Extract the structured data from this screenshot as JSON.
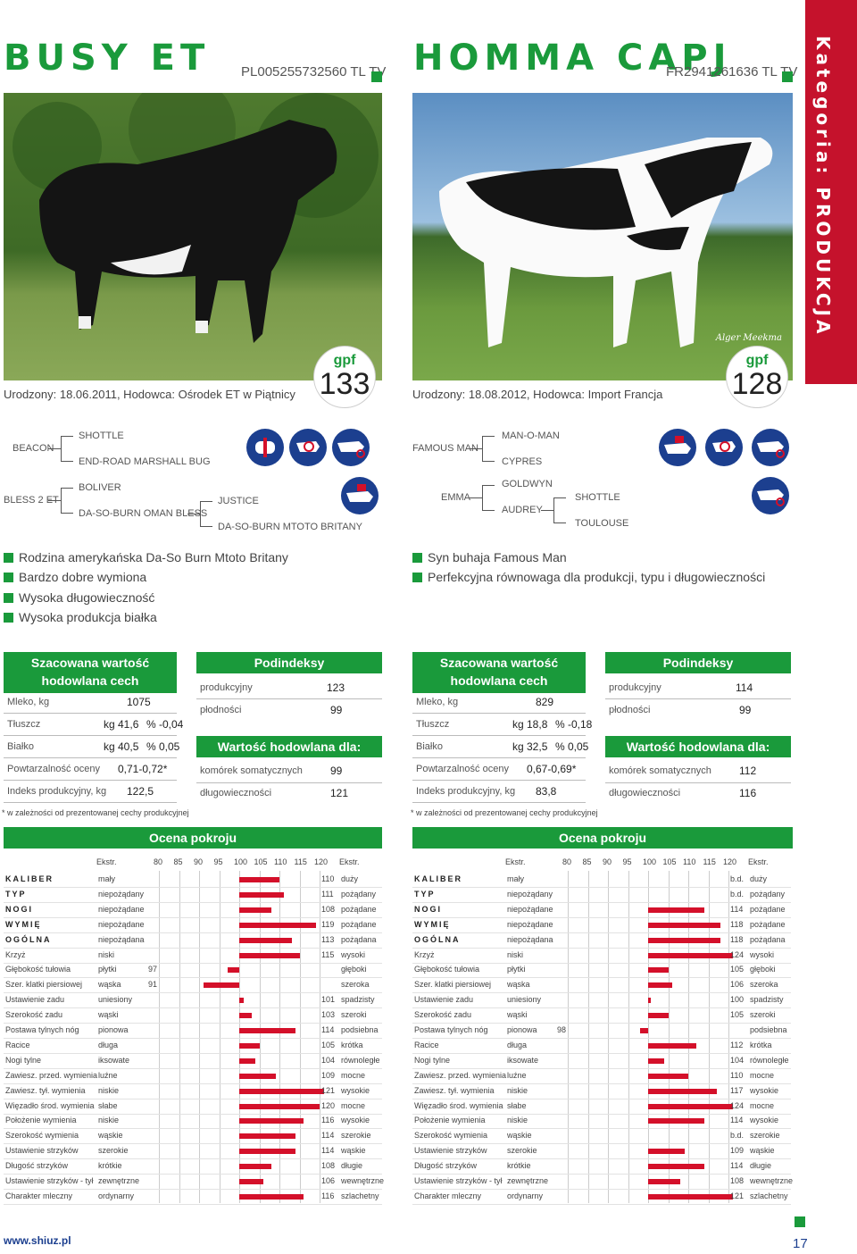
{
  "page": {
    "category": "Kategoria: PRODUKCJA",
    "url": "www.shiuz.pl",
    "page_number": "17"
  },
  "bulls": [
    {
      "name": "BUSY ET",
      "code": "PL005255732560 TL TV",
      "birth": "Urodzony: 18.06.2011, Hodowca: Ośrodek ET w Piątnicy",
      "gpf_label": "gpf",
      "gpf": "133",
      "pedigree": {
        "sire": "BEACON",
        "ss": "SHOTTLE",
        "sd": "END-ROAD MARSHALL BUG",
        "dam": "BLESS 2 ET",
        "ds": "BOLIVER",
        "dd": "DA-SO-BURN OMAN BLESS",
        "dds": "JUSTICE",
        "ddd": "DA-SO-BURN MTOTO BRITANY"
      },
      "icons": [
        "udder-icon",
        "target-icon",
        "cow-icon",
        "milk-icon"
      ],
      "bullets": [
        "Rodzina amerykańska Da-So Burn Mtoto Britany",
        "Bardzo dobre wymiona",
        "Wysoka długowieczność",
        "Wysoka produkcja białka"
      ],
      "est_title": "Szacowana wartość hodowlana cech produkcyjnych",
      "milk_label": "Mleko, kg",
      "milk": "1075",
      "fat_label": "Tłuszcz",
      "fat_kg": "kg 41,6",
      "fat_pct": "% -0,04",
      "prot_label": "Białko",
      "prot_kg": "kg 40,5",
      "prot_pct": "% 0,05",
      "rep_label": "Powtarzalność oceny",
      "rep": "0,71-0,72*",
      "idx_label": "Indeks produkcyjny, kg",
      "idx": "122,5",
      "sub_title": "Podindeksy",
      "prod_label": "produkcyjny",
      "prod": "123",
      "fert_label": "płodności",
      "fert": "99",
      "val_title": "Wartość hodowlana dla:",
      "scc_label": "komórek somatycznych",
      "scc": "99",
      "long_label": "długowieczności",
      "long": "121",
      "note": "* w zależności od prezentowanej cechy produkcyjnej",
      "traits": [
        {
          "name": "KALIBER",
          "lo": "mały",
          "v": "110",
          "val": 110,
          "hi": "duży",
          "bold": true
        },
        {
          "name": "TYP",
          "lo": "niepożądany",
          "v": "111",
          "val": 111,
          "hi": "pożądany",
          "bold": true
        },
        {
          "name": "NOGI",
          "lo": "niepożądane",
          "v": "108",
          "val": 108,
          "hi": "pożądane",
          "bold": true
        },
        {
          "name": "WYMIĘ",
          "lo": "niepożądane",
          "v": "119",
          "val": 119,
          "hi": "pożądane",
          "bold": true
        },
        {
          "name": "OGÓLNA",
          "lo": "niepożądana",
          "v": "113",
          "val": 113,
          "hi": "pożądana",
          "bold": true
        },
        {
          "name": "Krzyż",
          "lo": "niski",
          "v": "115",
          "val": 115,
          "hi": "wysoki"
        },
        {
          "name": "Głębokość tułowia",
          "lo": "płytki",
          "v": "97",
          "val": 97,
          "hi": "głęboki"
        },
        {
          "name": "Szer. klatki piersiowej",
          "lo": "wąska",
          "v": "91",
          "val": 91,
          "hi": "szeroka"
        },
        {
          "name": "Ustawienie zadu",
          "lo": "uniesiony",
          "v": "101",
          "val": 101,
          "hi": "spadzisty"
        },
        {
          "name": "Szerokość zadu",
          "lo": "wąski",
          "v": "103",
          "val": 103,
          "hi": "szeroki"
        },
        {
          "name": "Postawa tylnych nóg",
          "lo": "pionowa",
          "v": "114",
          "val": 114,
          "hi": "podsiebna"
        },
        {
          "name": "Racice",
          "lo": "długa",
          "v": "105",
          "val": 105,
          "hi": "krótka"
        },
        {
          "name": "Nogi tylne",
          "lo": "iksowate",
          "v": "104",
          "val": 104,
          "hi": "równoległe"
        },
        {
          "name": "Zawiesz. przed. wymienia",
          "lo": "luźne",
          "v": "109",
          "val": 109,
          "hi": "mocne"
        },
        {
          "name": "Zawiesz. tył. wymienia",
          "lo": "niskie",
          "v": "121",
          "val": 121,
          "hi": "wysokie"
        },
        {
          "name": "Więzadło środ. wymienia",
          "lo": "słabe",
          "v": "120",
          "val": 120,
          "hi": "mocne"
        },
        {
          "name": "Położenie wymienia",
          "lo": "niskie",
          "v": "116",
          "val": 116,
          "hi": "wysokie"
        },
        {
          "name": "Szerokość wymienia",
          "lo": "wąskie",
          "v": "114",
          "val": 114,
          "hi": "szerokie"
        },
        {
          "name": "Ustawienie strzyków",
          "lo": "szerokie",
          "v": "114",
          "val": 114,
          "hi": "wąskie"
        },
        {
          "name": "Długość strzyków",
          "lo": "krótkie",
          "v": "108",
          "val": 108,
          "hi": "długie"
        },
        {
          "name": "Ustawienie strzyków - tył",
          "lo": "zewnętrzne",
          "v": "106",
          "val": 106,
          "hi": "wewnętrzne"
        },
        {
          "name": "Charakter mleczny",
          "lo": "ordynarny",
          "v": "116",
          "val": 116,
          "hi": "szlachetny"
        }
      ]
    },
    {
      "name": "HOMMA CAPJ",
      "code": "FR2941261636 TL TV",
      "birth": "Urodzony: 18.08.2012, Hodowca: Import Francja",
      "gpf_label": "gpf",
      "gpf": "128",
      "photo_credit": "Alger Meekma",
      "pedigree": {
        "sire": "FAMOUS MAN",
        "ss": "MAN-O-MAN",
        "sd": "CYPRES",
        "dam": "EMMA",
        "ds": "GOLDWYN",
        "dd": "AUDREY",
        "dds": "SHOTTLE",
        "ddd": "TOULOUSE"
      },
      "icons": [
        "milk-icon",
        "target-icon",
        "cow-icon",
        "cow-icon"
      ],
      "bullets": [
        "Syn buhaja Famous Man",
        "Perfekcyjna równowaga dla produkcji, typu i długowieczności"
      ],
      "est_title": "Szacowana wartość hodowlana cech produkcyjnych",
      "milk_label": "Mleko, kg",
      "milk": "829",
      "fat_label": "Tłuszcz",
      "fat_kg": "kg 18,8",
      "fat_pct": "% -0,18",
      "prot_label": "Białko",
      "prot_kg": "kg 32,5",
      "prot_pct": "% 0,05",
      "rep_label": "Powtarzalność oceny",
      "rep": "0,67-0,69*",
      "idx_label": "Indeks produkcyjny, kg",
      "idx": "83,8",
      "sub_title": "Podindeksy",
      "prod_label": "produkcyjny",
      "prod": "114",
      "fert_label": "płodności",
      "fert": "99",
      "val_title": "Wartość hodowlana dla:",
      "scc_label": "komórek somatycznych",
      "scc": "112",
      "long_label": "długowieczności",
      "long": "116",
      "note": "* w zależności od prezentowanej cechy produkcyjnej",
      "traits": [
        {
          "name": "KALIBER",
          "lo": "mały",
          "v": "b.d.",
          "val": null,
          "hi": "duży",
          "bold": true
        },
        {
          "name": "TYP",
          "lo": "niepożądany",
          "v": "b.d.",
          "val": null,
          "hi": "pożądany",
          "bold": true
        },
        {
          "name": "NOGI",
          "lo": "niepożądane",
          "v": "114",
          "val": 114,
          "hi": "pożądane",
          "bold": true
        },
        {
          "name": "WYMIĘ",
          "lo": "niepożądane",
          "v": "118",
          "val": 118,
          "hi": "pożądane",
          "bold": true
        },
        {
          "name": "OGÓLNA",
          "lo": "niepożądana",
          "v": "118",
          "val": 118,
          "hi": "pożądana",
          "bold": true
        },
        {
          "name": "Krzyż",
          "lo": "niski",
          "v": "124",
          "val": 124,
          "hi": "wysoki"
        },
        {
          "name": "Głębokość tułowia",
          "lo": "płytki",
          "v": "105",
          "val": 105,
          "hi": "głęboki"
        },
        {
          "name": "Szer. klatki piersiowej",
          "lo": "wąska",
          "v": "106",
          "val": 106,
          "hi": "szeroka"
        },
        {
          "name": "Ustawienie zadu",
          "lo": "uniesiony",
          "v": "100",
          "val": 100,
          "hi": "spadzisty"
        },
        {
          "name": "Szerokość zadu",
          "lo": "wąski",
          "v": "105",
          "val": 105,
          "hi": "szeroki"
        },
        {
          "name": "Postawa tylnych nóg",
          "lo": "pionowa",
          "v": "98",
          "val": 98,
          "hi": "podsiebna"
        },
        {
          "name": "Racice",
          "lo": "długa",
          "v": "112",
          "val": 112,
          "hi": "krótka"
        },
        {
          "name": "Nogi tylne",
          "lo": "iksowate",
          "v": "104",
          "val": 104,
          "hi": "równoległe"
        },
        {
          "name": "Zawiesz. przed. wymienia",
          "lo": "luźne",
          "v": "110",
          "val": 110,
          "hi": "mocne"
        },
        {
          "name": "Zawiesz. tył. wymienia",
          "lo": "niskie",
          "v": "117",
          "val": 117,
          "hi": "wysokie"
        },
        {
          "name": "Więzadło środ. wymienia",
          "lo": "słabe",
          "v": "124",
          "val": 124,
          "hi": "mocne"
        },
        {
          "name": "Położenie wymienia",
          "lo": "niskie",
          "v": "114",
          "val": 114,
          "hi": "wysokie"
        },
        {
          "name": "Szerokość wymienia",
          "lo": "wąskie",
          "v": "b.d.",
          "val": null,
          "hi": "szerokie"
        },
        {
          "name": "Ustawienie strzyków",
          "lo": "szerokie",
          "v": "109",
          "val": 109,
          "hi": "wąskie"
        },
        {
          "name": "Długość strzyków",
          "lo": "krótkie",
          "v": "114",
          "val": 114,
          "hi": "długie"
        },
        {
          "name": "Ustawienie strzyków - tył",
          "lo": "zewnętrzne",
          "v": "108",
          "val": 108,
          "hi": "wewnętrzne"
        },
        {
          "name": "Charakter mleczny",
          "lo": "ordynarny",
          "v": "121",
          "val": 121,
          "hi": "szlachetny"
        }
      ]
    }
  ],
  "conformation": {
    "title": "Ocena pokroju",
    "extreme_label": "Ekstr.",
    "scale": [
      "80",
      "85",
      "90",
      "95",
      "100",
      "105",
      "110",
      "115",
      "120"
    ]
  },
  "colors": {
    "green": "#1a9a3b",
    "red": "#d4102a",
    "blue": "#1c3f8f"
  }
}
